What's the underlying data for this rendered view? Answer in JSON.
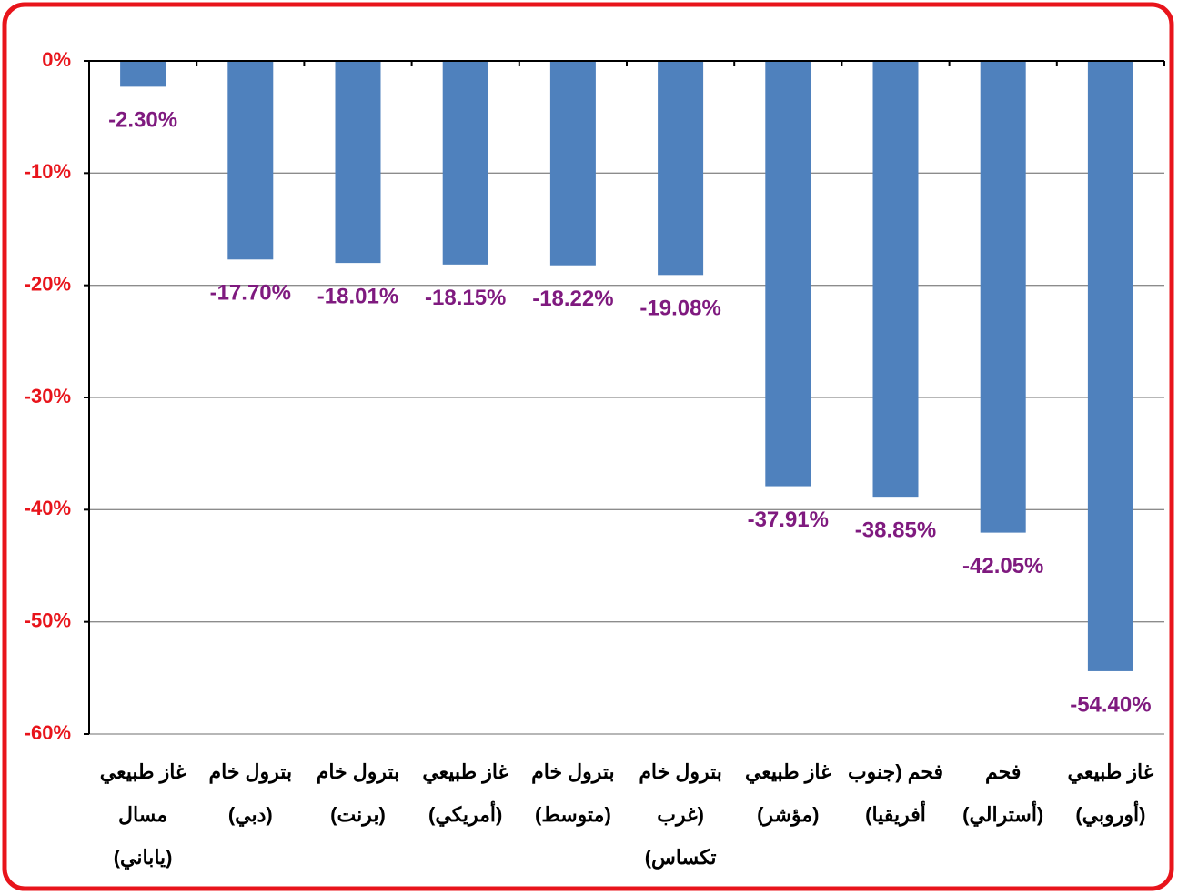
{
  "chart_data": {
    "type": "bar",
    "categories": [
      [
        "غاز طبيعي",
        "مسال",
        "(ياباني)"
      ],
      [
        "بترول خام",
        "(دبي)"
      ],
      [
        "بترول خام",
        "(برنت)"
      ],
      [
        "غاز طبيعي",
        "(أمريكي)"
      ],
      [
        "بترول خام",
        "(متوسط)"
      ],
      [
        "بترول خام",
        "(غرب",
        "تكساس)"
      ],
      [
        "غاز طبيعي",
        "(مؤشر)"
      ],
      [
        "فحم (جنوب",
        "أفريقيا)"
      ],
      [
        "فحم",
        "(أسترالي)"
      ],
      [
        "غاز طبيعي",
        "(أوروبي)"
      ]
    ],
    "values": [
      -2.3,
      -17.7,
      -18.01,
      -18.15,
      -18.22,
      -19.08,
      -37.91,
      -38.85,
      -42.05,
      -54.4
    ],
    "value_labels": [
      "-2.30%",
      "-17.70%",
      "-18.01%",
      "-18.15%",
      "-18.22%",
      "-19.08%",
      "-37.91%",
      "-38.85%",
      "-42.05%",
      "-54.40%"
    ],
    "color": "#4f81bd",
    "label_color": "#7f1a7f",
    "ylim": [
      -60,
      0
    ],
    "yticks": [
      {
        "value": 0,
        "label": "0%"
      },
      {
        "value": -10,
        "label": "-10%"
      },
      {
        "value": -20,
        "label": "-20%"
      },
      {
        "value": -30,
        "label": "-30%"
      },
      {
        "value": -40,
        "label": "-40%"
      },
      {
        "value": -50,
        "label": "-50%"
      },
      {
        "value": -60,
        "label": "-60%"
      }
    ],
    "grid": true
  }
}
